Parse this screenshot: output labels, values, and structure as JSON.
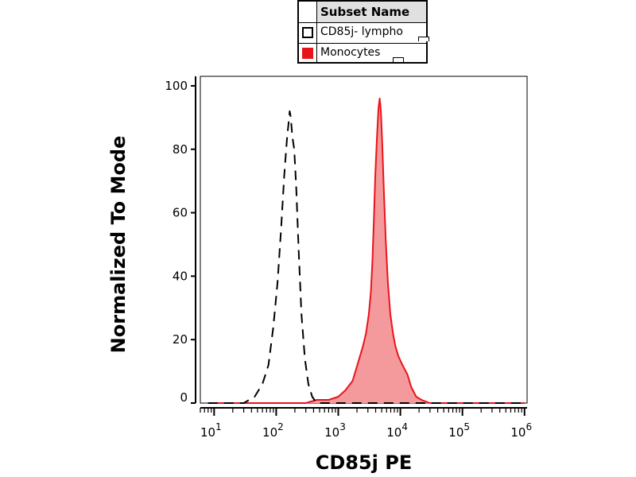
{
  "legend": {
    "header": "Subset Name",
    "items": [
      {
        "label": "CD85j- lympho",
        "style": "dashed-outline",
        "color": "#000000"
      },
      {
        "label": "Monocytes",
        "style": "filled",
        "color": "#e8141b",
        "fill": "#f59a9c"
      }
    ]
  },
  "chart_data": {
    "type": "area",
    "xlabel": "CD85j PE",
    "ylabel": "Normalized To Mode",
    "xscale": "log",
    "xlim": [
      6,
      1100000
    ],
    "ylim": [
      0,
      103
    ],
    "yticks": [
      0,
      20,
      40,
      60,
      80,
      100
    ],
    "xticks": [
      {
        "base": "10",
        "exp": "1",
        "value": 10
      },
      {
        "base": "10",
        "exp": "2",
        "value": 100
      },
      {
        "base": "10",
        "exp": "3",
        "value": 1000
      },
      {
        "base": "10",
        "exp": "4",
        "value": 10000
      },
      {
        "base": "10",
        "exp": "5",
        "value": 100000
      },
      {
        "base": "10",
        "exp": "6",
        "value": 1000000
      }
    ],
    "series": [
      {
        "name": "CD85j- lympho",
        "style": "dashed",
        "color": "#000000",
        "points": [
          [
            8,
            0
          ],
          [
            30,
            0
          ],
          [
            45,
            2
          ],
          [
            60,
            6
          ],
          [
            75,
            12
          ],
          [
            90,
            24
          ],
          [
            105,
            38
          ],
          [
            120,
            55
          ],
          [
            135,
            72
          ],
          [
            150,
            84
          ],
          [
            158,
            88
          ],
          [
            165,
            92
          ],
          [
            172,
            90
          ],
          [
            182,
            84
          ],
          [
            195,
            80
          ],
          [
            210,
            68
          ],
          [
            230,
            48
          ],
          [
            255,
            28
          ],
          [
            290,
            14
          ],
          [
            330,
            6
          ],
          [
            380,
            2
          ],
          [
            450,
            0
          ],
          [
            600,
            0
          ],
          [
            1000000,
            0
          ]
        ]
      },
      {
        "name": "Monocytes",
        "style": "filled",
        "color": "#e8141b",
        "fill": "#f59a9c",
        "points": [
          [
            8,
            0
          ],
          [
            300,
            0
          ],
          [
            450,
            1
          ],
          [
            700,
            1
          ],
          [
            1000,
            2
          ],
          [
            1300,
            4
          ],
          [
            1700,
            7
          ],
          [
            2100,
            13
          ],
          [
            2500,
            18
          ],
          [
            2800,
            22
          ],
          [
            3100,
            28
          ],
          [
            3350,
            35
          ],
          [
            3550,
            45
          ],
          [
            3750,
            58
          ],
          [
            3950,
            72
          ],
          [
            4200,
            84
          ],
          [
            4450,
            93
          ],
          [
            4650,
            96
          ],
          [
            4850,
            92
          ],
          [
            5100,
            82
          ],
          [
            5400,
            68
          ],
          [
            5800,
            52
          ],
          [
            6300,
            38
          ],
          [
            6900,
            28
          ],
          [
            7600,
            22
          ],
          [
            8300,
            18
          ],
          [
            9200,
            15
          ],
          [
            10200,
            13
          ],
          [
            11500,
            11
          ],
          [
            13000,
            9
          ],
          [
            15000,
            5
          ],
          [
            18000,
            2
          ],
          [
            22000,
            1
          ],
          [
            30000,
            0
          ],
          [
            1000000,
            0
          ]
        ]
      }
    ]
  }
}
